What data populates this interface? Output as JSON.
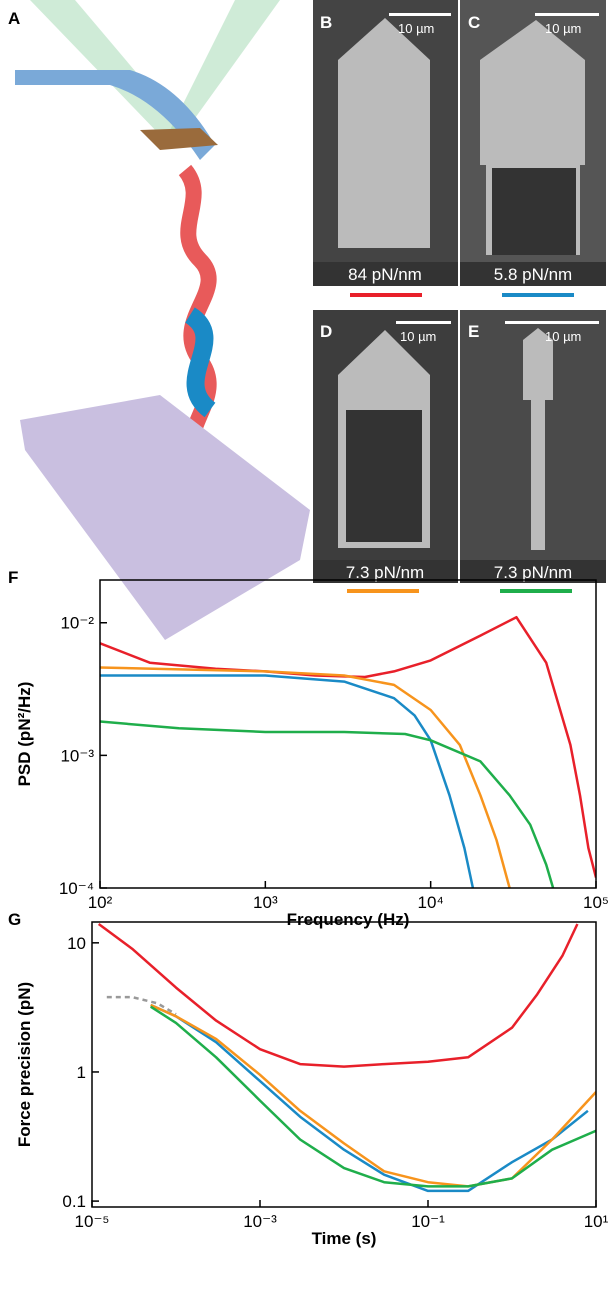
{
  "panels": {
    "a": "A",
    "b": "B",
    "c": "C",
    "d": "D",
    "e": "E",
    "scale_b": "10 µm",
    "scale_c": "10 µm",
    "scale_d": "10 µm",
    "scale_e": "10 µm",
    "stiffness_b": "84 pN/nm",
    "stiffness_c": "5.8 pN/nm",
    "stiffness_d": "7.3 pN/nm",
    "stiffness_e": "7.3 pN/nm"
  },
  "chart_data": [
    {
      "type": "line",
      "panel_label": "F",
      "xlabel": "Frequency (Hz)",
      "ylabel": "PSD (pN²/Hz)",
      "xscale": "log",
      "yscale": "log",
      "xlim": [
        100,
        100000
      ],
      "ylim": [
        0.0001,
        0.021
      ],
      "xticks": [
        {
          "value": 100,
          "label": "10²"
        },
        {
          "value": 1000,
          "label": "10³"
        },
        {
          "value": 10000,
          "label": "10⁴"
        },
        {
          "value": 100000,
          "label": "10⁵"
        }
      ],
      "yticks": [
        {
          "value": 0.0001,
          "label": "10⁻⁴"
        },
        {
          "value": 0.001,
          "label": "10⁻³"
        },
        {
          "value": 0.01,
          "label": "10⁻²"
        }
      ],
      "series": [
        {
          "color": "#e8202a",
          "x": [
            100,
            200,
            500,
            1000,
            2000,
            4000,
            6000,
            10000,
            20000,
            33000,
            50000,
            70000,
            80000,
            90000,
            100000
          ],
          "values": [
            0.007,
            0.005,
            0.0045,
            0.0043,
            0.004,
            0.0039,
            0.0043,
            0.0052,
            0.008,
            0.011,
            0.005,
            0.0012,
            0.0005,
            0.0002,
            0.00012
          ]
        },
        {
          "color": "#f7941d",
          "x": [
            100,
            1000,
            3000,
            6000,
            10000,
            15000,
            20000,
            25000,
            30000
          ],
          "values": [
            0.0046,
            0.0043,
            0.004,
            0.0034,
            0.0022,
            0.0012,
            0.0005,
            0.00023,
            0.0001
          ]
        },
        {
          "color": "#1a8ac6",
          "x": [
            100,
            1000,
            3000,
            6000,
            8000,
            10000,
            13000,
            16000,
            18000
          ],
          "values": [
            0.004,
            0.004,
            0.0036,
            0.0027,
            0.002,
            0.0013,
            0.0005,
            0.0002,
            0.0001
          ]
        },
        {
          "color": "#1fae4b",
          "x": [
            100,
            300,
            1000,
            3000,
            7000,
            10000,
            20000,
            30000,
            40000,
            50000,
            55000
          ],
          "values": [
            0.0018,
            0.0016,
            0.0015,
            0.0015,
            0.00145,
            0.0013,
            0.0009,
            0.0005,
            0.0003,
            0.00015,
            0.0001
          ]
        }
      ]
    },
    {
      "type": "line",
      "panel_label": "G",
      "xlabel": "Time (s)",
      "ylabel": "Force precision (pN)",
      "xscale": "log",
      "yscale": "log",
      "xlim": [
        1e-05,
        10
      ],
      "ylim": [
        0.09,
        14.5
      ],
      "xticks": [
        {
          "value": 1e-05,
          "label": "10⁻⁵"
        },
        {
          "value": 0.001,
          "label": "10⁻³"
        },
        {
          "value": 0.1,
          "label": "10⁻¹"
        },
        {
          "value": 10,
          "label": "10¹"
        }
      ],
      "yticks": [
        0.1,
        1,
        10
      ],
      "series": [
        {
          "color": "#999999",
          "dashed": true,
          "x": [
            1.5e-05,
            3e-05,
            6e-05,
            0.0001
          ],
          "values": [
            3.8,
            3.8,
            3.4,
            2.8
          ]
        },
        {
          "color": "#e8202a",
          "x": [
            1.2e-05,
            3e-05,
            0.0001,
            0.0003,
            0.001,
            0.003,
            0.01,
            0.03,
            0.1,
            0.3,
            1,
            2,
            4,
            6
          ],
          "values": [
            14,
            9,
            4.5,
            2.5,
            1.5,
            1.15,
            1.1,
            1.15,
            1.2,
            1.3,
            2.2,
            4,
            8,
            14
          ]
        },
        {
          "color": "#1a8ac6",
          "x": [
            5e-05,
            0.0001,
            0.0003,
            0.001,
            0.003,
            0.01,
            0.03,
            0.1,
            0.3,
            1,
            3,
            8
          ],
          "values": [
            3.3,
            2.7,
            1.7,
            0.85,
            0.45,
            0.25,
            0.16,
            0.12,
            0.12,
            0.2,
            0.3,
            0.5
          ]
        },
        {
          "color": "#f7941d",
          "x": [
            5e-05,
            0.0001,
            0.0003,
            0.001,
            0.003,
            0.01,
            0.03,
            0.1,
            0.3,
            1,
            3,
            10
          ],
          "values": [
            3.3,
            2.7,
            1.8,
            0.95,
            0.5,
            0.28,
            0.17,
            0.14,
            0.13,
            0.15,
            0.3,
            0.7
          ]
        },
        {
          "color": "#1fae4b",
          "x": [
            5e-05,
            0.0001,
            0.0003,
            0.001,
            0.003,
            0.01,
            0.03,
            0.1,
            0.3,
            1,
            3,
            10
          ],
          "values": [
            3.2,
            2.4,
            1.3,
            0.6,
            0.3,
            0.18,
            0.14,
            0.13,
            0.13,
            0.15,
            0.25,
            0.35
          ]
        }
      ]
    }
  ]
}
